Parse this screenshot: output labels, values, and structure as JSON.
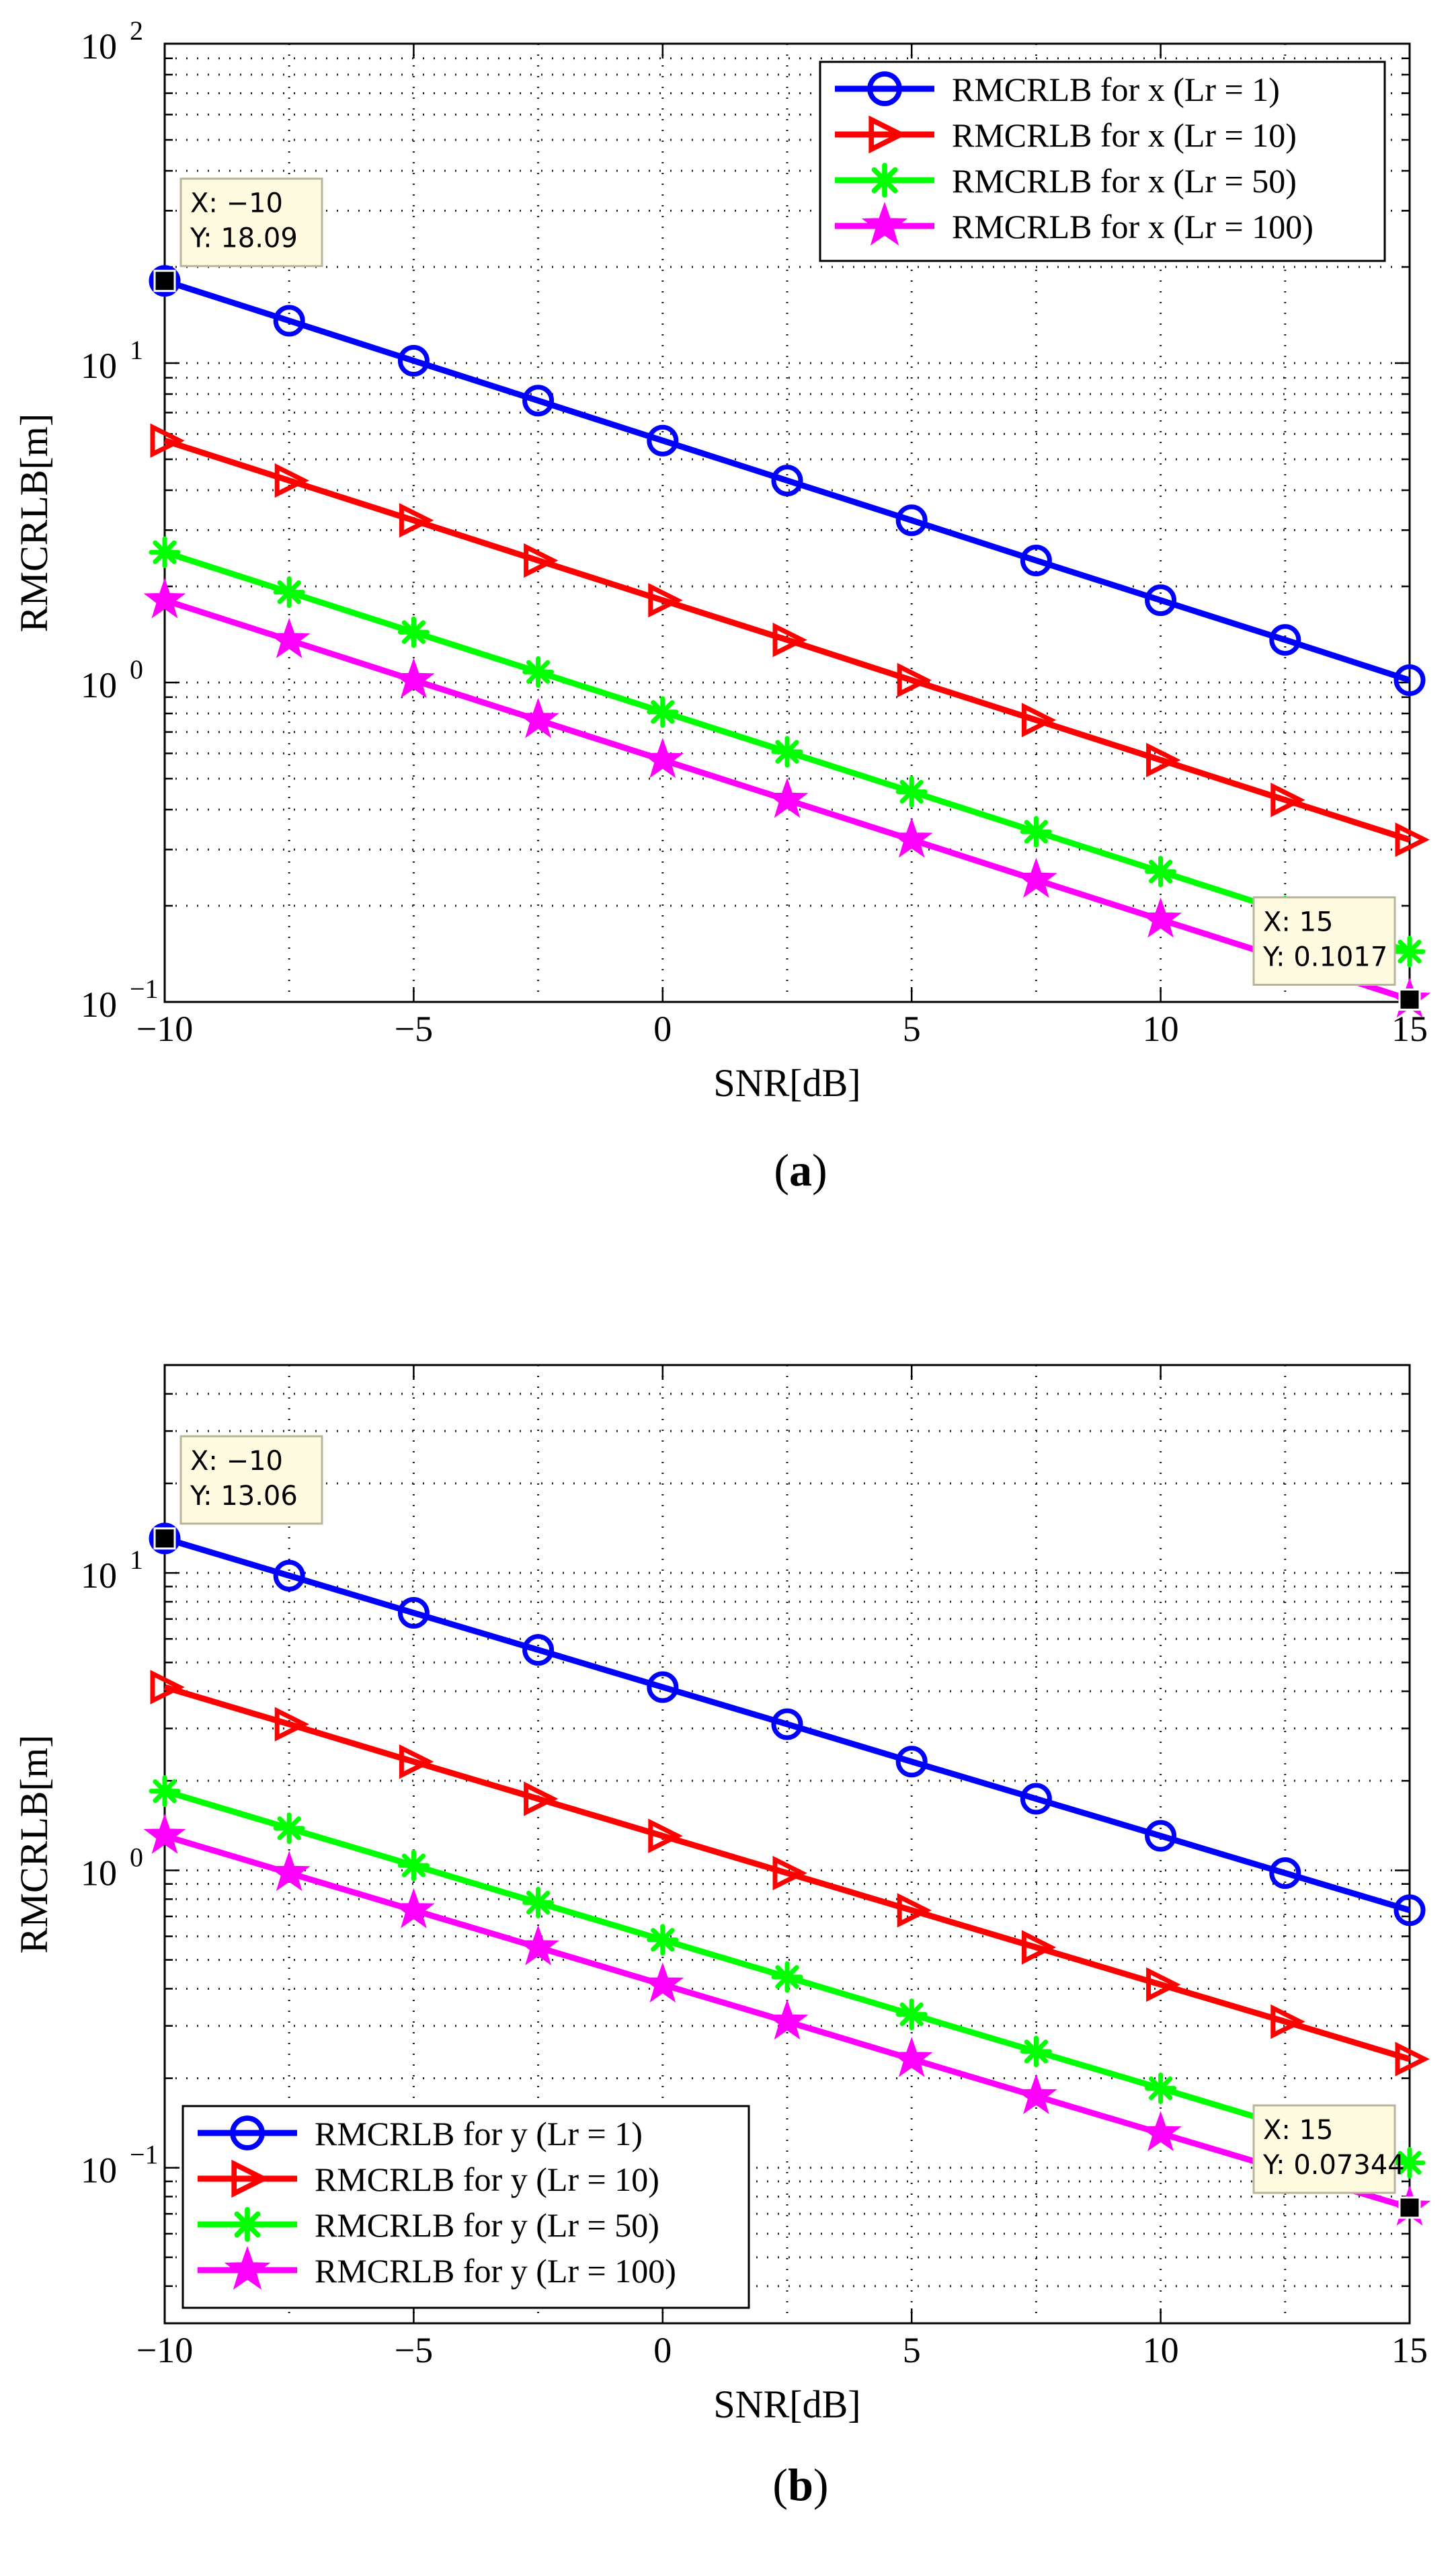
{
  "chart_data": [
    {
      "type": "line",
      "panel": "a",
      "caption_text": "a",
      "caption_open": "(",
      "caption_close": ")",
      "xlabel": "SNR[dB]",
      "ylabel": "RMCRLB[m]",
      "xscale": "linear",
      "yscale": "log",
      "xlim": [
        -10,
        15
      ],
      "ylim": [
        0.1,
        100
      ],
      "xticks": [
        -10,
        -5,
        0,
        5,
        10,
        15
      ],
      "xtick_labels": [
        "−10",
        "−5",
        "0",
        "5",
        "10",
        "15"
      ],
      "yticks": [
        0.1,
        1,
        10,
        100
      ],
      "ytick_base": "10",
      "ytick_exponents": [
        "−1",
        "0",
        "1",
        "2"
      ],
      "grid": "dotted",
      "legend_position": "top-right",
      "x": [
        -10,
        -7.5,
        -5,
        -2.5,
        0,
        2.5,
        5,
        7.5,
        10,
        12.5,
        15
      ],
      "series": [
        {
          "name": "RMCRLB for x (Lr = 1)",
          "color": "#0000ff",
          "marker": "circle",
          "values": [
            18.09,
            13.57,
            10.17,
            7.63,
            5.72,
            4.29,
            3.22,
            2.41,
            1.81,
            1.36,
            1.017
          ]
        },
        {
          "name": "RMCRLB for x (Lr = 10)",
          "color": "#ff0000",
          "marker": "triangle-right",
          "values": [
            5.72,
            4.29,
            3.22,
            2.41,
            1.81,
            1.36,
            1.017,
            0.763,
            0.572,
            0.429,
            0.322
          ]
        },
        {
          "name": "RMCRLB for x (Lr = 50)",
          "color": "#00ff00",
          "marker": "star",
          "values": [
            2.558,
            1.918,
            1.438,
            1.079,
            0.809,
            0.607,
            0.455,
            0.341,
            0.256,
            0.192,
            0.1438
          ]
        },
        {
          "name": "RMCRLB for x (Lr = 100)",
          "color": "#ff00ff",
          "marker": "pentagram",
          "values": [
            1.809,
            1.357,
            1.017,
            0.763,
            0.572,
            0.429,
            0.322,
            0.241,
            0.181,
            0.136,
            0.1017
          ]
        }
      ],
      "annotations": [
        {
          "x": -10,
          "y": 18.09,
          "line1": "X: −10",
          "line2": "Y: 18.09"
        },
        {
          "x": 15,
          "y": 0.1017,
          "line1": "X: 15",
          "line2": "Y: 0.1017"
        }
      ]
    },
    {
      "type": "line",
      "panel": "b",
      "caption_text": "b",
      "caption_open": "(",
      "caption_close": ")",
      "xlabel": "SNR[dB]",
      "ylabel": "RMCRLB[m]",
      "xscale": "linear",
      "yscale": "log",
      "xlim": [
        -10,
        15
      ],
      "ylim": [
        0.03,
        50
      ],
      "xticks": [
        -10,
        -5,
        0,
        5,
        10,
        15
      ],
      "xtick_labels": [
        "−10",
        "−5",
        "0",
        "5",
        "10",
        "15"
      ],
      "yticks": [
        0.1,
        1,
        10
      ],
      "ytick_base": "10",
      "ytick_exponents": [
        "−1",
        "0",
        "1"
      ],
      "grid": "dotted",
      "legend_position": "bottom-left",
      "x": [
        -10,
        -7.5,
        -5,
        -2.5,
        0,
        2.5,
        5,
        7.5,
        10,
        12.5,
        15
      ],
      "series": [
        {
          "name": "RMCRLB for y (Lr = 1)",
          "color": "#0000ff",
          "marker": "circle",
          "values": [
            13.06,
            9.79,
            7.34,
            5.51,
            4.13,
            3.1,
            2.32,
            1.74,
            1.306,
            0.979,
            0.7344
          ]
        },
        {
          "name": "RMCRLB for y (Lr = 10)",
          "color": "#ff0000",
          "marker": "triangle-right",
          "values": [
            4.13,
            3.1,
            2.32,
            1.74,
            1.306,
            0.979,
            0.734,
            0.551,
            0.413,
            0.31,
            0.232
          ]
        },
        {
          "name": "RMCRLB for y (Lr = 50)",
          "color": "#00ff00",
          "marker": "star",
          "values": [
            1.847,
            1.385,
            1.039,
            0.779,
            0.584,
            0.438,
            0.328,
            0.246,
            0.185,
            0.1385,
            0.1039
          ]
        },
        {
          "name": "RMCRLB for y (Lr = 100)",
          "color": "#ff00ff",
          "marker": "pentagram",
          "values": [
            1.306,
            0.979,
            0.734,
            0.551,
            0.413,
            0.31,
            0.232,
            0.174,
            0.1306,
            0.0979,
            0.07344
          ]
        }
      ],
      "annotations": [
        {
          "x": -10,
          "y": 13.06,
          "line1": "X: −10",
          "line2": "Y: 13.06"
        },
        {
          "x": 15,
          "y": 0.07344,
          "line1": "X: 15",
          "line2": "Y: 0.07344"
        }
      ]
    }
  ]
}
